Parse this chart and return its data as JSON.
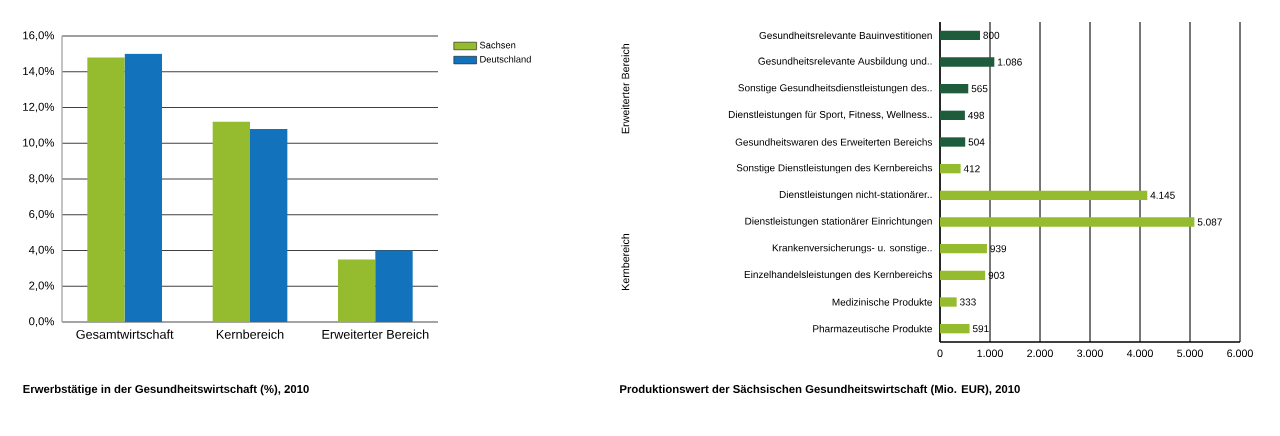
{
  "chart_data": [
    {
      "type": "bar",
      "title": "Erwerbstätige in der Gesundheitswirtschaft (%), 2010",
      "categories": [
        "Gesamtwirtschaft",
        "Kernbereich",
        "Erweiterter Bereich"
      ],
      "series": [
        {
          "name": "Sachsen",
          "color": "#95bc2f",
          "values": [
            14.8,
            11.2,
            3.5
          ]
        },
        {
          "name": "Deutschland",
          "color": "#1272bc",
          "values": [
            15.0,
            10.8,
            4.0
          ]
        }
      ],
      "ylim": [
        0,
        16
      ],
      "yticks": [
        {
          "value": 0,
          "label": "0,0%"
        },
        {
          "value": 2,
          "label": "2,0%"
        },
        {
          "value": 4,
          "label": "4,0%"
        },
        {
          "value": 6,
          "label": "6,0%"
        },
        {
          "value": 8,
          "label": "8,0%"
        },
        {
          "value": 10,
          "label": "10,0%"
        },
        {
          "value": 12,
          "label": "12,0%"
        },
        {
          "value": 14,
          "label": "14,0%"
        },
        {
          "value": 16,
          "label": "16,0%"
        }
      ],
      "grid": "y",
      "legend": "top right"
    },
    {
      "type": "bar",
      "orientation": "horizontal",
      "title": "Produktionswert der Sächsischen Gesundheitswirtschaft (Mio. EUR), 2010",
      "categories": [
        "Gesundheitsrelevante Bauinvestitionen",
        "Gesundheitsrelevante Ausbildung und..",
        "Sonstige Gesundheitsdienstleistungen des..",
        "Dienstleistungen für Sport, Fitness, Wellness..",
        "Gesundheitswaren des Erweiterten Bereichs",
        "Sonstige Dienstleistungen des Kernbereichs",
        "Dienstleistungen nicht-stationärer..",
        "Dienstleistungen stationärer Einrichtungen",
        "Krankenversicherungs- u. sonstige..",
        "Einzelhandelsleistungen des Kernbereichs",
        "Medizinische Produkte",
        "Pharmazeutische Produkte"
      ],
      "values": [
        800,
        1086,
        565,
        498,
        504,
        412,
        4145,
        5087,
        939,
        903,
        333,
        591
      ],
      "value_labels": [
        "800",
        "1.086",
        "565",
        "498",
        "504",
        "412",
        "4.145",
        "5.087",
        "939",
        "903",
        "333",
        "591"
      ],
      "colors": [
        "#1e5c3c",
        "#1e5c3c",
        "#1e5c3c",
        "#1e5c3c",
        "#1e5c3c",
        "#95bc2f",
        "#95bc2f",
        "#95bc2f",
        "#95bc2f",
        "#95bc2f",
        "#95bc2f",
        "#95bc2f"
      ],
      "xlim": [
        0,
        6000
      ],
      "xticks": [
        0,
        {
          "value": 1000,
          "label": "1.000"
        },
        {
          "value": 2000,
          "label": "2.000"
        },
        {
          "value": 3000,
          "label": "3.000"
        },
        {
          "value": 4000,
          "label": "4.000"
        },
        {
          "value": 5000,
          "label": "5.000"
        },
        {
          "value": 6000,
          "label": "6.000"
        }
      ],
      "grid": "x",
      "annotations": [
        "Erweiterter Bereich",
        "Kernbereich"
      ]
    }
  ]
}
